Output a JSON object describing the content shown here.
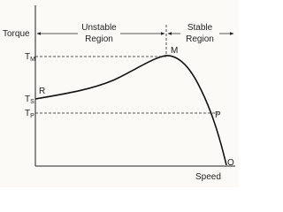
{
  "axes": {
    "y_label": "Torque",
    "x_label": "Speed"
  },
  "regions": [
    {
      "line1": "Unstable",
      "line2": "Region"
    },
    {
      "line1": "Stable",
      "line2": "Region"
    }
  ],
  "levels": [
    {
      "symbol": "T",
      "sub": "M"
    },
    {
      "symbol": "T",
      "sub": "S"
    },
    {
      "symbol": "T",
      "sub": "P"
    }
  ],
  "points": [
    "R",
    "M",
    "P",
    "O"
  ]
}
